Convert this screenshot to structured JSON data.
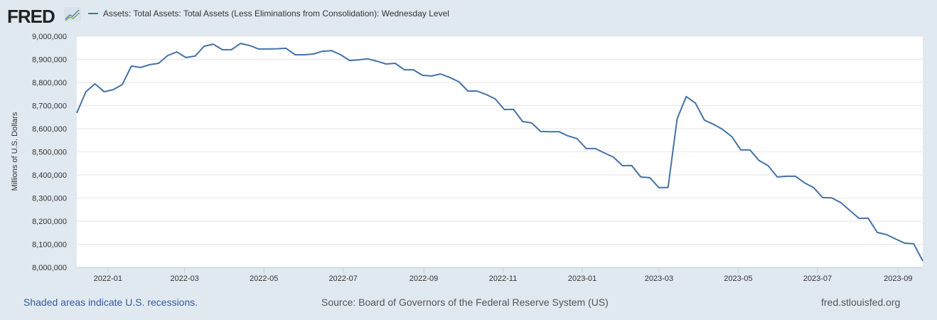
{
  "header": {
    "logo_text": "FRED",
    "legend_label": "Assets: Total Assets: Total Assets (Less Eliminations from Consolidation): Wednesday Level"
  },
  "footer": {
    "recession_note": "Shaded areas indicate U.S. recessions.",
    "source": "Source: Board of Governors of the Federal Reserve System (US)",
    "site": "fred.stlouisfed.org"
  },
  "colors": {
    "series": "#4572a7",
    "background": "#e1e9f0",
    "grid": "#e6e6e6"
  },
  "chart_data": {
    "type": "line",
    "title": "Assets: Total Assets: Total Assets (Less Eliminations from Consolidation): Wednesday Level",
    "xlabel": "",
    "ylabel": "Millions of U.S. Dollars",
    "ylim": [
      8000000,
      9000000
    ],
    "yticks": [
      "8,000,000",
      "8,100,000",
      "8,200,000",
      "8,300,000",
      "8,400,000",
      "8,500,000",
      "8,600,000",
      "8,700,000",
      "8,800,000",
      "8,900,000",
      "9,000,000"
    ],
    "xticks": [
      "2022-01",
      "2022-03",
      "2022-05",
      "2022-07",
      "2022-09",
      "2022-11",
      "2023-01",
      "2023-03",
      "2023-05",
      "2023-07",
      "2023-09"
    ],
    "x_start": "2021-12-08",
    "x_end": "2023-09-20",
    "x_step_days": 7,
    "grid": true,
    "series": [
      {
        "name": "Assets: Total Assets: Total Assets (Less Eliminations from Consolidation): Wednesday Level",
        "values": [
          8668000,
          8760000,
          8794000,
          8760000,
          8769000,
          8791000,
          8871000,
          8865000,
          8877000,
          8883000,
          8917000,
          8932000,
          8908000,
          8914000,
          8957000,
          8966000,
          8942000,
          8942000,
          8969000,
          8960000,
          8945000,
          8945000,
          8946000,
          8948000,
          8920000,
          8920000,
          8923000,
          8935000,
          8938000,
          8920000,
          8895000,
          8898000,
          8902000,
          8892000,
          8880000,
          8883000,
          8855000,
          8855000,
          8831000,
          8828000,
          8837000,
          8822000,
          8803000,
          8763000,
          8763000,
          8748000,
          8729000,
          8683000,
          8684000,
          8631000,
          8625000,
          8588000,
          8587000,
          8587000,
          8569000,
          8557000,
          8514000,
          8514000,
          8495000,
          8477000,
          8440000,
          8441000,
          8391000,
          8388000,
          8345000,
          8346000,
          8643000,
          8739000,
          8711000,
          8637000,
          8619000,
          8597000,
          8566000,
          8508000,
          8508000,
          8462000,
          8440000,
          8391000,
          8394000,
          8394000,
          8366000,
          8345000,
          8302000,
          8301000,
          8280000,
          8246000,
          8212000,
          8213000,
          8151000,
          8142000,
          8123000,
          8105000,
          8102000,
          8028000
        ]
      }
    ]
  }
}
